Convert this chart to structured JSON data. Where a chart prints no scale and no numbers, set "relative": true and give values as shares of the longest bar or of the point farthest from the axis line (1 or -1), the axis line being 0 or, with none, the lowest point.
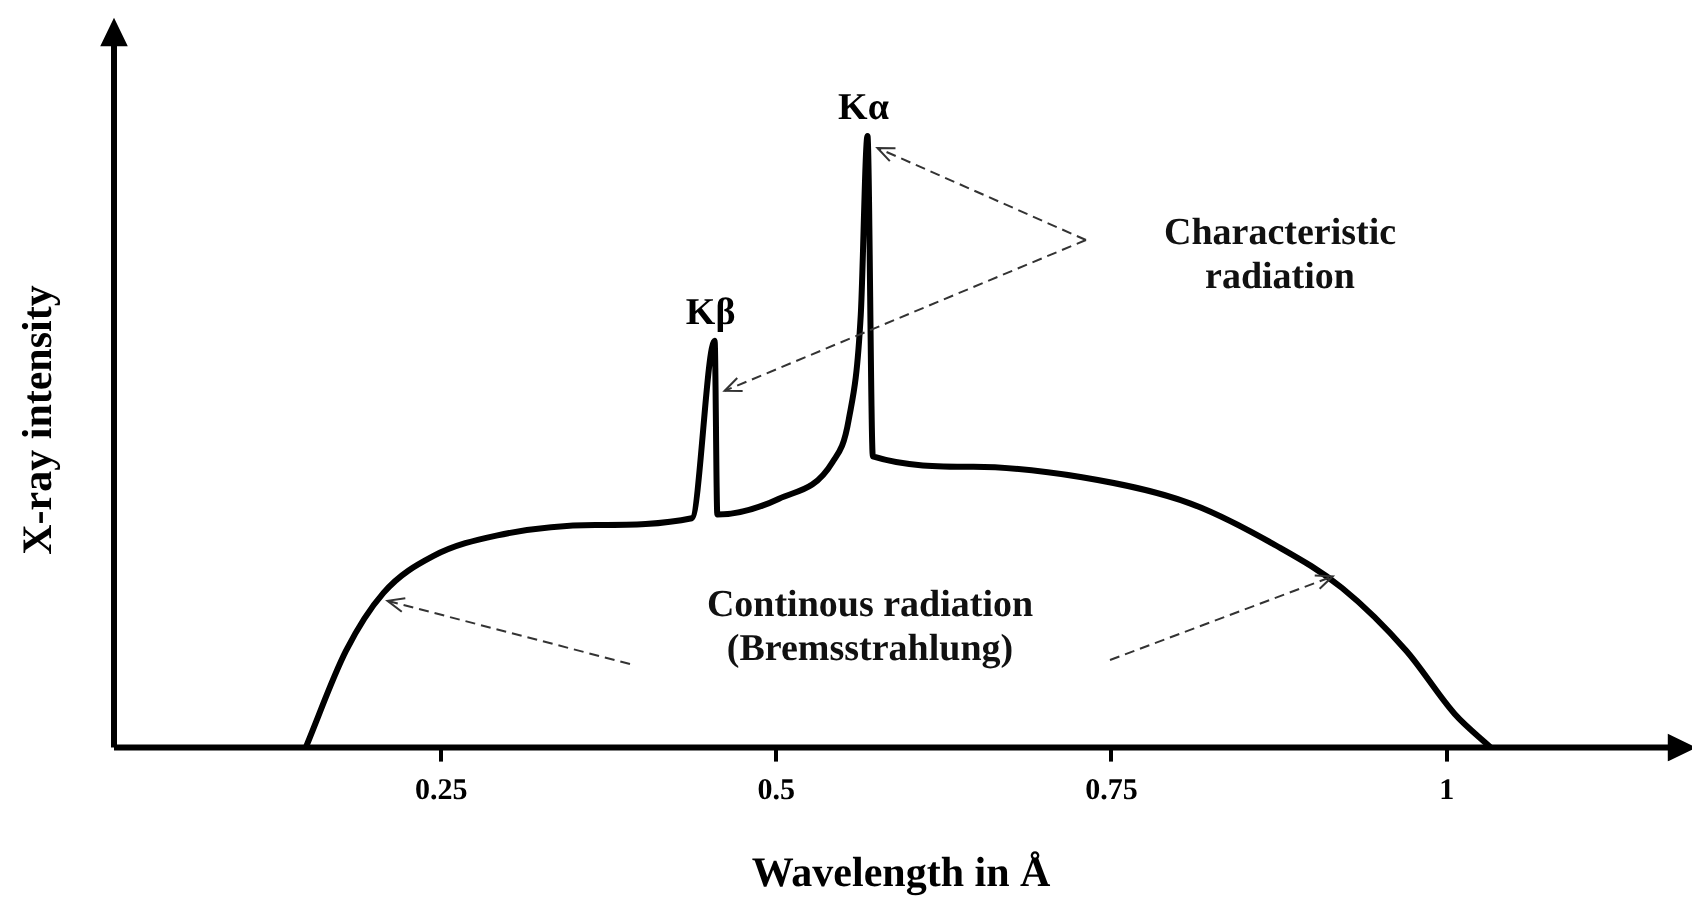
{
  "chart_data": {
    "type": "line",
    "relative": true,
    "xlabel": "Wavelength in Å",
    "ylabel": "X-ray intensity",
    "xlim": [
      0.006,
      1.18
    ],
    "xticks": [
      0.25,
      0.5,
      0.75,
      1
    ],
    "grid": false,
    "legend": false,
    "marker": "none",
    "line_style": "solid",
    "series": [
      {
        "color": "#000000",
        "x": [
          0.149,
          0.179,
          0.207,
          0.244,
          0.292,
          0.365,
          0.437,
          0.454,
          0.456,
          0.502,
          0.542,
          0.554,
          0.563,
          0.568,
          0.572,
          0.647,
          0.728,
          0.809,
          0.873,
          0.922,
          0.97,
          1.006,
          1.033
        ],
        "values": [
          0,
          0.158,
          0.253,
          0.313,
          0.347,
          0.364,
          0.375,
          0.665,
          0.381,
          0.407,
          0.467,
          0.536,
          0.708,
          1,
          0.476,
          0.459,
          0.442,
          0.399,
          0.33,
          0.261,
          0.158,
          0.055,
          0
        ]
      }
    ],
    "annotations": [
      {
        "text": "Kα",
        "x": 0.568,
        "y": 1
      },
      {
        "text": "Kβ",
        "x": 0.454,
        "y": 0.665
      },
      "Characteristic radiation",
      "Continous radiation (Bremsstrahlung)"
    ]
  }
}
